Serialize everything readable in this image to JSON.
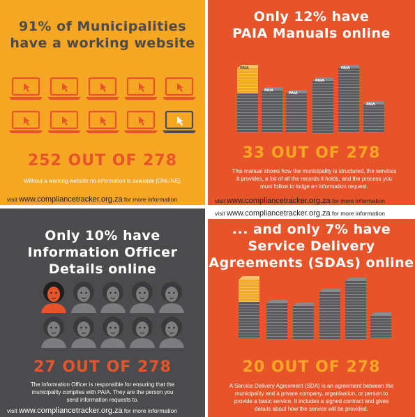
{
  "panels": [
    {
      "title_l1": "91% of Municipalities",
      "title_l2": "have a working website",
      "stat": "252 OUT OF 278",
      "desc": "Without a working website no information is available [ONLINE].",
      "footer_prefix": "visit ",
      "footer_url": "www.compliancetracker.org.za",
      "footer_suffix": " for more information",
      "icons": {
        "type": "laptop-icon",
        "count": 10,
        "highlighted": 1
      }
    },
    {
      "title_l1": "Only 12% have",
      "title_l2": "PAIA Manuals online",
      "stat": "33 OUT OF 278",
      "desc": "This manual shows how the municipality is structured, the services it provides, a list of all the records it holds, and the process you must follow to lodge an information request.",
      "footer_prefix": "visit ",
      "footer_url": "www.compliancetracker.org.za",
      "footer_suffix": " for more information",
      "stack_label": "PAIA",
      "icons": {
        "type": "document-stack-icon",
        "count": 6,
        "highlighted": 1
      }
    },
    {
      "title_l1": "Only 10% have",
      "title_l2": "Information Officer",
      "title_l3": "Details online",
      "stat": "27 OUT OF 278",
      "desc": "The Information Officer is responsible for ensuring that the municipality complies with PAIA. They are the person you send information requests to.",
      "footer_prefix": "visit ",
      "footer_url": "www.compliancetracker.org.za",
      "footer_suffix": " for more information",
      "icons": {
        "type": "person-icon",
        "count": 10,
        "highlighted": 1
      }
    },
    {
      "title_l1": "... and only 7% have",
      "title_l2": "Service Delivery",
      "title_l3": "Agreements (SDAs) online",
      "stat": "20 OUT OF 278",
      "desc": "A Service Delivery Agreement (SDA) is an agreement between the municipality and a private company, organisation, or person to provide a basic service. It includes a signed contract and gives details about how the service will be provided.",
      "icons": {
        "type": "document-stack-icon",
        "count": 6,
        "highlighted": 1
      }
    }
  ],
  "banner": {
    "footer_prefix": "visit ",
    "footer_url": "www.compliancetracker.org.za",
    "footer_suffix": " for more information"
  },
  "colors": {
    "yellow": "#f5a623",
    "orange": "#e8542a",
    "dark_gray": "#4b4b4d",
    "stack_gray": "#5a5a5c",
    "person_gray": "#7d7d7f"
  }
}
